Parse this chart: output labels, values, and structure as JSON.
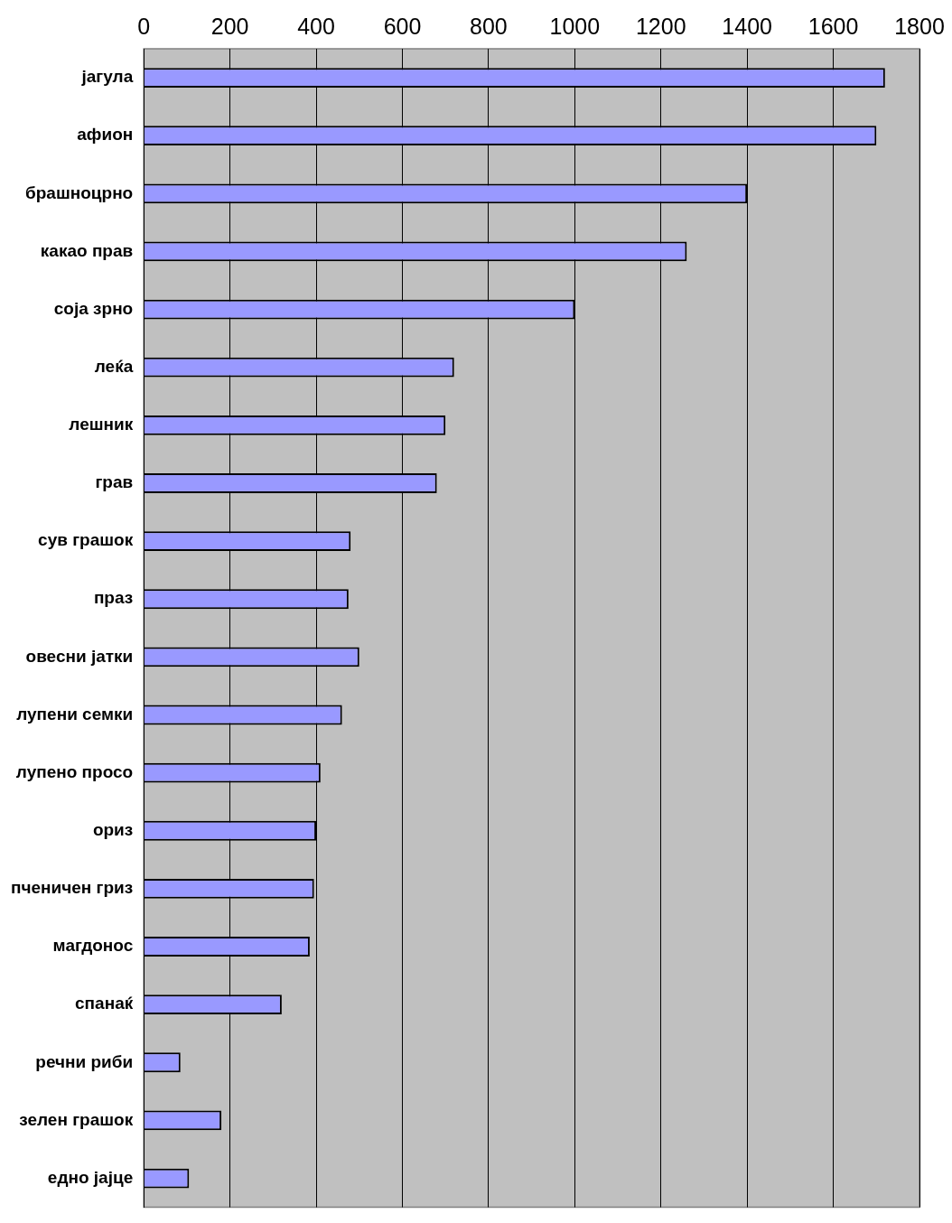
{
  "chart_data": {
    "type": "bar",
    "orientation": "horizontal",
    "categories": [
      "јагула",
      "афион",
      "брашноцрно",
      "какао прав",
      "соја зрно",
      "леќа",
      "лешник",
      "грав",
      "сув грашок",
      "праз",
      "овесни јатки",
      "лупени семки",
      "лупено просо",
      "ориз",
      "пченичен гриз",
      "магдонос",
      "спанаќ",
      "речни риби",
      "зелен грашок",
      "едно јајце"
    ],
    "values": [
      1720,
      1700,
      1400,
      1260,
      1000,
      720,
      700,
      680,
      480,
      475,
      500,
      460,
      410,
      400,
      395,
      385,
      320,
      85,
      180,
      105
    ],
    "color": "#9999ff",
    "xlim": [
      0,
      1800
    ],
    "xticks": [
      0,
      200,
      400,
      600,
      800,
      1000,
      1200,
      1400,
      1600,
      1800
    ],
    "grid": "x",
    "legend": false
  }
}
